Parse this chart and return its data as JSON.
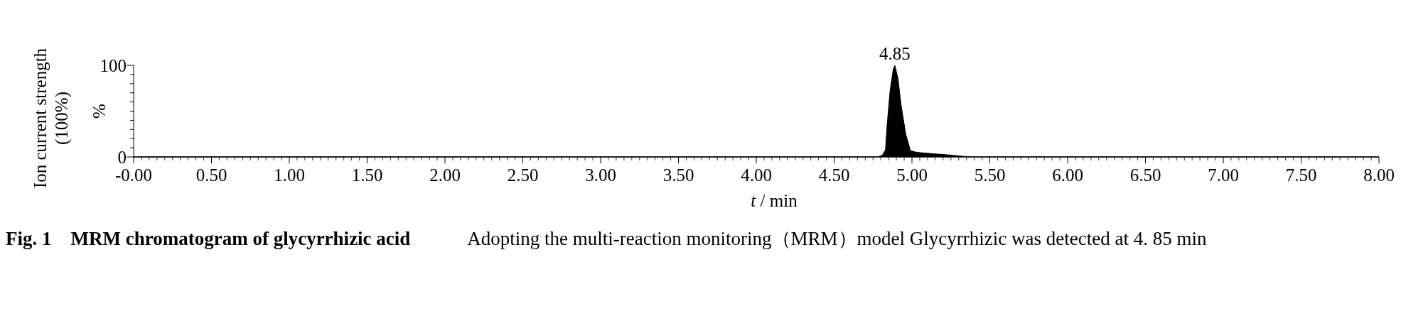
{
  "chart_data": {
    "type": "area",
    "title": "Fig. 1　MRM chromatogram of glycyrrhizic acid",
    "xlabel": "t / min",
    "ylabel": "Ion current strength (100%)",
    "x": [
      0,
      4.78,
      4.81,
      4.83,
      4.84,
      4.86,
      4.88,
      4.89,
      4.91,
      4.93,
      4.96,
      4.99,
      5.03,
      5.14,
      5.25,
      5.34,
      5.4,
      8
    ],
    "series": [
      {
        "color": "#000000",
        "values": [
          0,
          0,
          2,
          8,
          34,
          73,
          96,
          100,
          86,
          57,
          25,
          7,
          5,
          3.5,
          2,
          0.5,
          0,
          0
        ]
      }
    ],
    "xlim": [
      0,
      8
    ],
    "ylim": [
      0,
      100
    ],
    "yticks": [
      0,
      {
        "value": 10,
        "label": null
      },
      {
        "value": 20,
        "label": null
      },
      {
        "value": 30,
        "label": null
      },
      {
        "value": 40,
        "label": null
      },
      {
        "value": 50,
        "label": null
      },
      {
        "value": 60,
        "label": null
      },
      {
        "value": 70,
        "label": null
      },
      {
        "value": 80,
        "label": null
      },
      {
        "value": 90,
        "label": null
      },
      100
    ],
    "xticks": [
      {
        "value": 0,
        "label": "-0.00"
      },
      {
        "value": 0.5,
        "label": "0.50"
      },
      {
        "value": 1,
        "label": "1.00"
      },
      {
        "value": 1.5,
        "label": "1.50"
      },
      {
        "value": 2,
        "label": "2.00"
      },
      {
        "value": 2.5,
        "label": "2.50"
      },
      {
        "value": 3,
        "label": "3.00"
      },
      {
        "value": 3.5,
        "label": "3.50"
      },
      {
        "value": 4,
        "label": "4.00"
      },
      {
        "value": 4.5,
        "label": "4.50"
      },
      {
        "value": 5,
        "label": "5.00"
      },
      {
        "value": 5.5,
        "label": "5.50"
      },
      {
        "value": 6,
        "label": "6.00"
      },
      {
        "value": 6.5,
        "label": "6.50"
      },
      {
        "value": 7,
        "label": "7.00"
      },
      {
        "value": 7.5,
        "label": "7.50"
      },
      {
        "value": 8,
        "label": "8.00"
      }
    ],
    "annotations": [
      {
        "text": "4.85",
        "x": 4.89,
        "y": 100
      },
      "%",
      "Adopting the multi-reaction monitoring（MRM）model Glycyrrhizic was detected at 4. 85 min"
    ]
  }
}
